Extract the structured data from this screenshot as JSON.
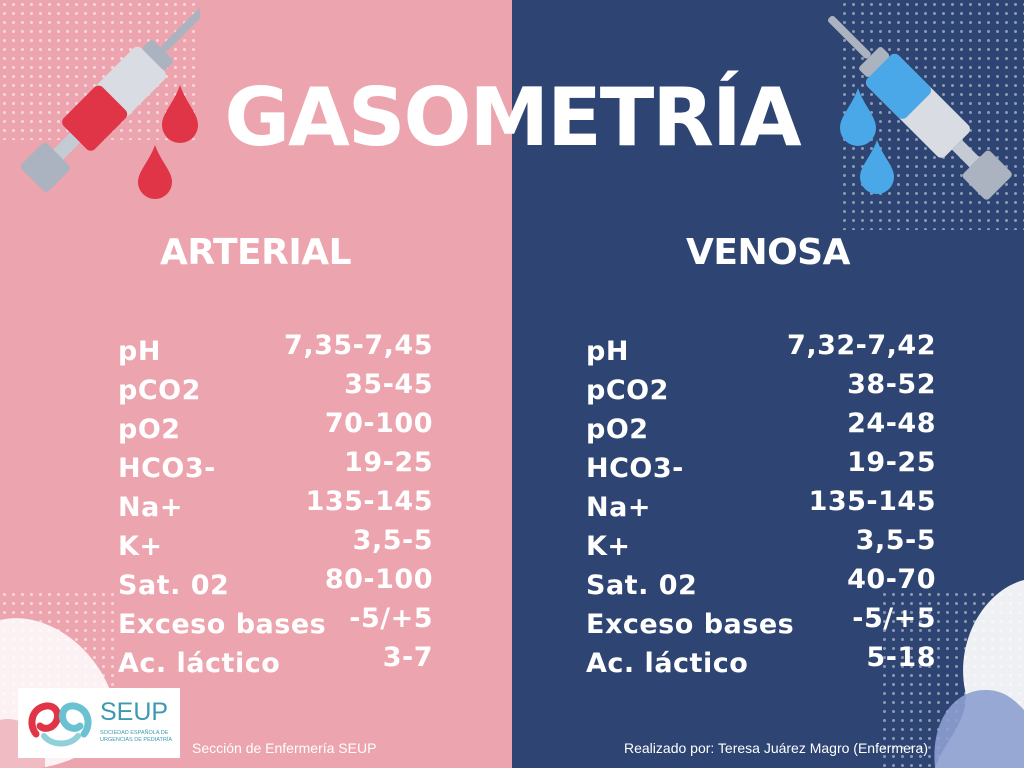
{
  "title": "GASOMETRÍA",
  "arterial": {
    "heading": "ARTERIAL",
    "rows": [
      {
        "label": "pH",
        "value": "7,35-7,45"
      },
      {
        "label": "pCO2",
        "value": "35-45"
      },
      {
        "label": "pO2",
        "value": "70-100"
      },
      {
        "label": "HCO3-",
        "value": "19-25"
      },
      {
        "label": "Na+",
        "value": "135-145"
      },
      {
        "label": "K+",
        "value": "3,5-5"
      },
      {
        "label": "Sat. 02",
        "value": "80-100"
      },
      {
        "label": "Exceso bases",
        "value": "-5/+5"
      },
      {
        "label": "Ac. láctico",
        "value": "3-7"
      }
    ]
  },
  "venosa": {
    "heading": "VENOSA",
    "rows": [
      {
        "label": "pH",
        "value": "7,32-7,42"
      },
      {
        "label": "pCO2",
        "value": "38-52"
      },
      {
        "label": "pO2",
        "value": "24-48"
      },
      {
        "label": "HCO3-",
        "value": "19-25"
      },
      {
        "label": "Na+",
        "value": "135-145"
      },
      {
        "label": "K+",
        "value": "3,5-5"
      },
      {
        "label": "Sat. 02",
        "value": "40-70"
      },
      {
        "label": "Exceso bases",
        "value": "-5/+5"
      },
      {
        "label": "Ac. láctico",
        "value": "5-18"
      }
    ]
  },
  "logo": {
    "name": "SEUP",
    "subtitle": "SOCIEDAD ESPAÑOLA DE URGENCIAS DE PEDIATRÍA"
  },
  "footer": {
    "left": "Sección de Enfermería SEUP",
    "right": "Realizado por: Teresa Juárez Magro (Enfermera)"
  },
  "colors": {
    "arterial_bg": "#eca4ae",
    "venosa_bg": "#2e4472",
    "blood_red": "#e03447",
    "venous_blue": "#4aa8e8",
    "text": "#ffffff"
  },
  "icons": [
    "syringe-red-icon",
    "blood-drop-icon",
    "syringe-blue-icon",
    "water-drop-icon"
  ]
}
